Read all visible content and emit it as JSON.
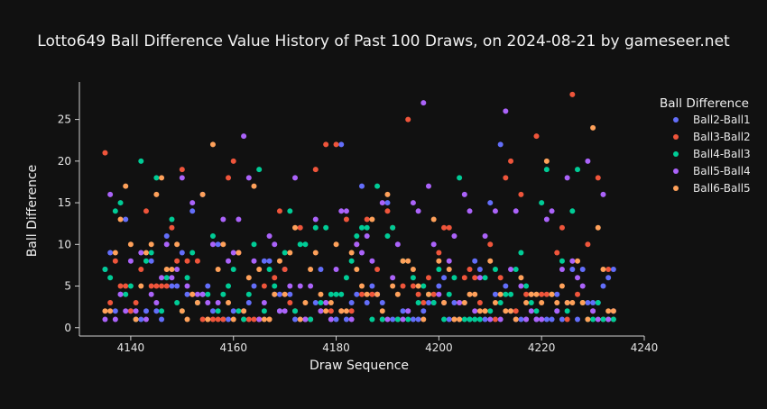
{
  "chart_data": {
    "type": "scatter",
    "title": "Lotto649 Ball Difference Value History of Past 100 Draws, on 2024-08-21 by gameseer.net",
    "xlabel": "Draw Sequence",
    "ylabel": "Ball Difference",
    "xlim": [
      4130,
      4240
    ],
    "ylim": [
      -1,
      29.5
    ],
    "xticks": [
      4140,
      4160,
      4180,
      4200,
      4220,
      4240
    ],
    "yticks": [
      0,
      5,
      10,
      15,
      20,
      25
    ],
    "grid": false,
    "legend": {
      "title": "Ball Difference",
      "placement": "right"
    },
    "x": [
      4135,
      4136,
      4137,
      4138,
      4139,
      4140,
      4141,
      4142,
      4143,
      4144,
      4145,
      4146,
      4147,
      4148,
      4149,
      4150,
      4151,
      4152,
      4153,
      4154,
      4155,
      4156,
      4157,
      4158,
      4159,
      4160,
      4161,
      4162,
      4163,
      4164,
      4165,
      4166,
      4167,
      4168,
      4169,
      4170,
      4171,
      4172,
      4173,
      4174,
      4175,
      4176,
      4177,
      4178,
      4179,
      4180,
      4181,
      4182,
      4183,
      4184,
      4185,
      4186,
      4187,
      4188,
      4189,
      4190,
      4191,
      4192,
      4193,
      4194,
      4195,
      4196,
      4197,
      4198,
      4199,
      4200,
      4201,
      4202,
      4203,
      4204,
      4205,
      4206,
      4207,
      4208,
      4209,
      4210,
      4211,
      4212,
      4213,
      4214,
      4215,
      4216,
      4217,
      4218,
      4219,
      4220,
      4221,
      4222,
      4223,
      4224,
      4225,
      4226,
      4227,
      4228,
      4229,
      4230,
      4231,
      4232,
      4233,
      4234
    ],
    "series": [
      {
        "name": "Ball2-Ball1",
        "color": "#636efa",
        "values": [
          7,
          9,
          2,
          4,
          13,
          2,
          1,
          1,
          2,
          8,
          2,
          1,
          11,
          5,
          5,
          9,
          4,
          14,
          3,
          16,
          5,
          2,
          10,
          1,
          1,
          2,
          9,
          2,
          3,
          5,
          1,
          8,
          8,
          4,
          4,
          7,
          4,
          1,
          1,
          1,
          1,
          3,
          7,
          3,
          1,
          1,
          22,
          1,
          3,
          4,
          17,
          3,
          5,
          4,
          3,
          15,
          1,
          1,
          2,
          2,
          1,
          1,
          2,
          3,
          3,
          5,
          6,
          1,
          3,
          1,
          3,
          1,
          8,
          7,
          1,
          15,
          4,
          22,
          5,
          2,
          1,
          1,
          1,
          4,
          1,
          1,
          1,
          1,
          4,
          1,
          3,
          7,
          1,
          7,
          3,
          3,
          3,
          5,
          6,
          7
        ]
      },
      {
        "name": "Ball3-Ball2",
        "color": "#ef553b",
        "values": [
          21,
          3,
          8,
          5,
          5,
          2,
          3,
          7,
          14,
          5,
          5,
          5,
          5,
          12,
          8,
          19,
          8,
          4,
          8,
          1,
          1,
          1,
          1,
          1,
          18,
          20,
          9,
          1,
          1,
          1,
          1,
          5,
          1,
          6,
          14,
          7,
          3,
          2,
          12,
          1,
          1,
          19,
          2,
          22,
          2,
          22,
          2,
          13,
          2,
          10,
          4,
          13,
          4,
          7,
          1,
          14,
          12,
          1,
          5,
          25,
          5,
          4,
          3,
          6,
          4,
          9,
          12,
          12,
          1,
          3,
          6,
          7,
          6,
          3,
          2,
          10,
          1,
          6,
          18,
          20,
          2,
          16,
          4,
          4,
          23,
          4,
          4,
          4,
          9,
          12,
          1,
          28,
          4,
          3,
          10,
          2,
          18,
          1,
          7,
          1
        ]
      },
      {
        "name": "Ball4-Ball3",
        "color": "#00cc96",
        "values": [
          7,
          6,
          14,
          15,
          4,
          5,
          1,
          20,
          8,
          9,
          18,
          2,
          6,
          13,
          3,
          2,
          6,
          9,
          3,
          4,
          4,
          11,
          2,
          4,
          5,
          7,
          2,
          1,
          4,
          10,
          19,
          2,
          7,
          5,
          2,
          9,
          14,
          2,
          10,
          10,
          1,
          12,
          3,
          12,
          4,
          4,
          4,
          6,
          8,
          11,
          12,
          12,
          1,
          17,
          1,
          11,
          12,
          1,
          8,
          1,
          6,
          3,
          5,
          4,
          3,
          7,
          1,
          4,
          6,
          18,
          1,
          1,
          1,
          1,
          6,
          2,
          7,
          3,
          4,
          4,
          7,
          9,
          5,
          3,
          2,
          15,
          19,
          4,
          2,
          8,
          2,
          14,
          19,
          3,
          1,
          1,
          3,
          1,
          1,
          1
        ]
      },
      {
        "name": "Ball5-Ball4",
        "color": "#ab63fa",
        "values": [
          1,
          16,
          1,
          4,
          2,
          8,
          2,
          9,
          1,
          4,
          3,
          6,
          10,
          6,
          7,
          18,
          5,
          15,
          4,
          4,
          3,
          10,
          3,
          13,
          8,
          9,
          13,
          23,
          18,
          8,
          1,
          3,
          11,
          10,
          2,
          2,
          5,
          18,
          5,
          1,
          5,
          13,
          2,
          3,
          1,
          7,
          14,
          14,
          1,
          10,
          9,
          11,
          8,
          4,
          15,
          1,
          6,
          10,
          1,
          2,
          15,
          14,
          27,
          17,
          10,
          4,
          3,
          8,
          11,
          3,
          16,
          14,
          2,
          6,
          11,
          1,
          14,
          1,
          26,
          7,
          14,
          5,
          1,
          2,
          1,
          1,
          13,
          14,
          2,
          7,
          18,
          8,
          6,
          5,
          20,
          2,
          1,
          16,
          1,
          2
        ]
      },
      {
        "name": "Ball6-Ball5",
        "color": "#ffa15a",
        "values": [
          2,
          2,
          9,
          13,
          17,
          10,
          1,
          5,
          9,
          10,
          16,
          18,
          7,
          7,
          10,
          2,
          1,
          4,
          3,
          16,
          1,
          22,
          7,
          10,
          3,
          1,
          9,
          2,
          6,
          17,
          7,
          1,
          1,
          4,
          8,
          4,
          9,
          12,
          1,
          3,
          7,
          9,
          4,
          2,
          3,
          10,
          2,
          2,
          9,
          7,
          5,
          4,
          13,
          4,
          2,
          16,
          5,
          4,
          8,
          8,
          7,
          5,
          1,
          4,
          13,
          8,
          3,
          7,
          1,
          1,
          3,
          4,
          4,
          2,
          2,
          8,
          3,
          4,
          2,
          2,
          1,
          6,
          3,
          4,
          4,
          3,
          20,
          4,
          3,
          5,
          3,
          3,
          8,
          3,
          1,
          24,
          12,
          7,
          2,
          2
        ]
      }
    ]
  }
}
